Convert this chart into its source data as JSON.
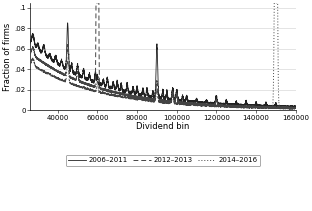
{
  "title": "",
  "xlabel": "Dividend bin",
  "ylabel": "Fraction of firms",
  "xlim": [
    26000,
    160000
  ],
  "ylim": [
    0,
    0.105
  ],
  "yticks": [
    0,
    0.02,
    0.04,
    0.06,
    0.08,
    0.1
  ],
  "ytick_labels": [
    "0",
    ".02",
    ".04",
    ".06",
    ".08",
    ".1"
  ],
  "xticks": [
    40000,
    60000,
    80000,
    100000,
    120000,
    140000,
    160000
  ],
  "line1_label": "2006–2011",
  "line2_label": "2012–2013",
  "line3_label": "2014–2016",
  "line1_color": "#222222",
  "line2_color": "#444444",
  "line3_color": "#444444",
  "background_color": "#ffffff",
  "grid_color": "#d0d0d0",
  "seed": 42
}
